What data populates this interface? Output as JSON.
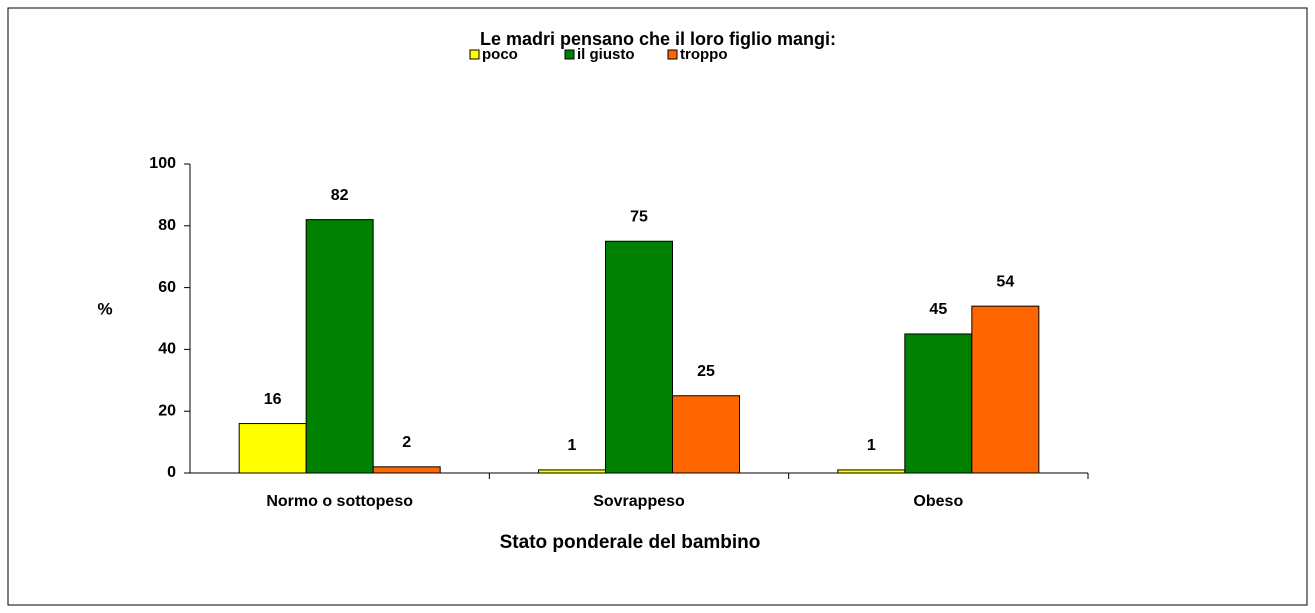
{
  "chart_data": {
    "type": "bar",
    "title": "Le madri pensano che il loro figlio mangi:",
    "categories": [
      "Normo o sottopeso",
      "Sovrappeso",
      "Obeso"
    ],
    "series": [
      {
        "name": "poco",
        "color": "#ffff00",
        "values": [
          16,
          1,
          1
        ]
      },
      {
        "name": "il giusto",
        "color": "#008000",
        "values": [
          82,
          75,
          45
        ]
      },
      {
        "name": "troppo",
        "color": "#ff6600",
        "values": [
          2,
          25,
          54
        ]
      }
    ],
    "ylabel": "%",
    "xlabel": "Stato ponderale del bambino",
    "ylim": [
      0,
      100
    ],
    "yticks": [
      0,
      20,
      40,
      60,
      80,
      100
    ],
    "legend": "top",
    "grid": false
  }
}
